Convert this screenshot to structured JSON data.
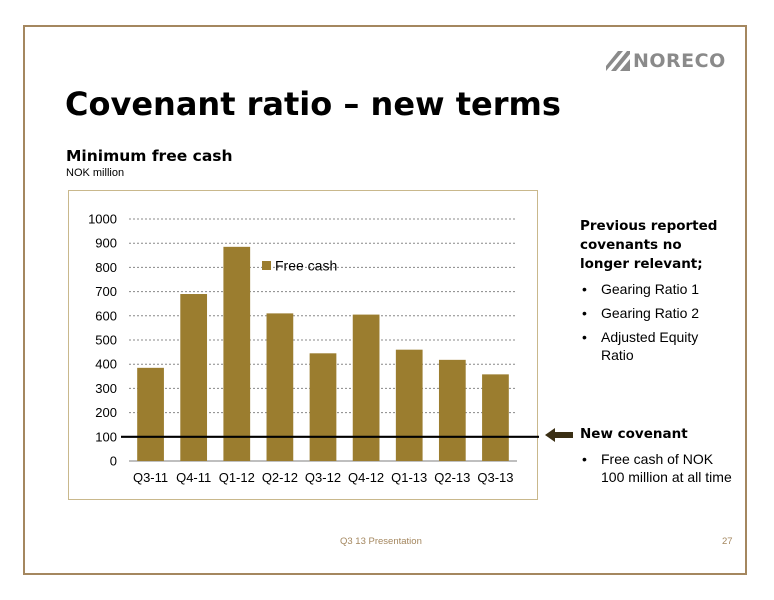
{
  "logo": {
    "text": "NORECO",
    "icon": "noreco-stripes-logo"
  },
  "title": "Covenant ratio – new terms",
  "subtitle": "Minimum free cash",
  "unit": "NOK million",
  "colors": {
    "bar": "#9b7d2f",
    "frame": "#a4875f",
    "covenant_line": "#000000",
    "grid": "#888888"
  },
  "chart_data": {
    "type": "bar",
    "title": "",
    "xlabel": "",
    "ylabel": "",
    "categories": [
      "Q3-11",
      "Q4-11",
      "Q1-12",
      "Q2-12",
      "Q3-12",
      "Q4-12",
      "Q1-13",
      "Q2-13",
      "Q3-13"
    ],
    "series": [
      {
        "name": "Free cash",
        "values": [
          385,
          690,
          885,
          610,
          445,
          605,
          460,
          418,
          358
        ]
      }
    ],
    "ylim": [
      0,
      1000
    ],
    "yticks": [
      0,
      100,
      200,
      300,
      400,
      500,
      600,
      700,
      800,
      900,
      1000
    ],
    "grid": "horizontal-dashed",
    "legend": "inside-top",
    "reference_line": {
      "value": 100,
      "label": "New covenant"
    }
  },
  "side_top": {
    "heading": "Previous reported covenants no longer relevant;",
    "items": [
      "Gearing Ratio 1",
      "Gearing Ratio 2",
      "Adjusted Equity Ratio"
    ]
  },
  "side_bottom": {
    "heading": "New covenant",
    "items": [
      "Free cash of NOK 100 million at all time"
    ]
  },
  "footer": {
    "text": "Q3 13 Presentation",
    "page": "27"
  }
}
